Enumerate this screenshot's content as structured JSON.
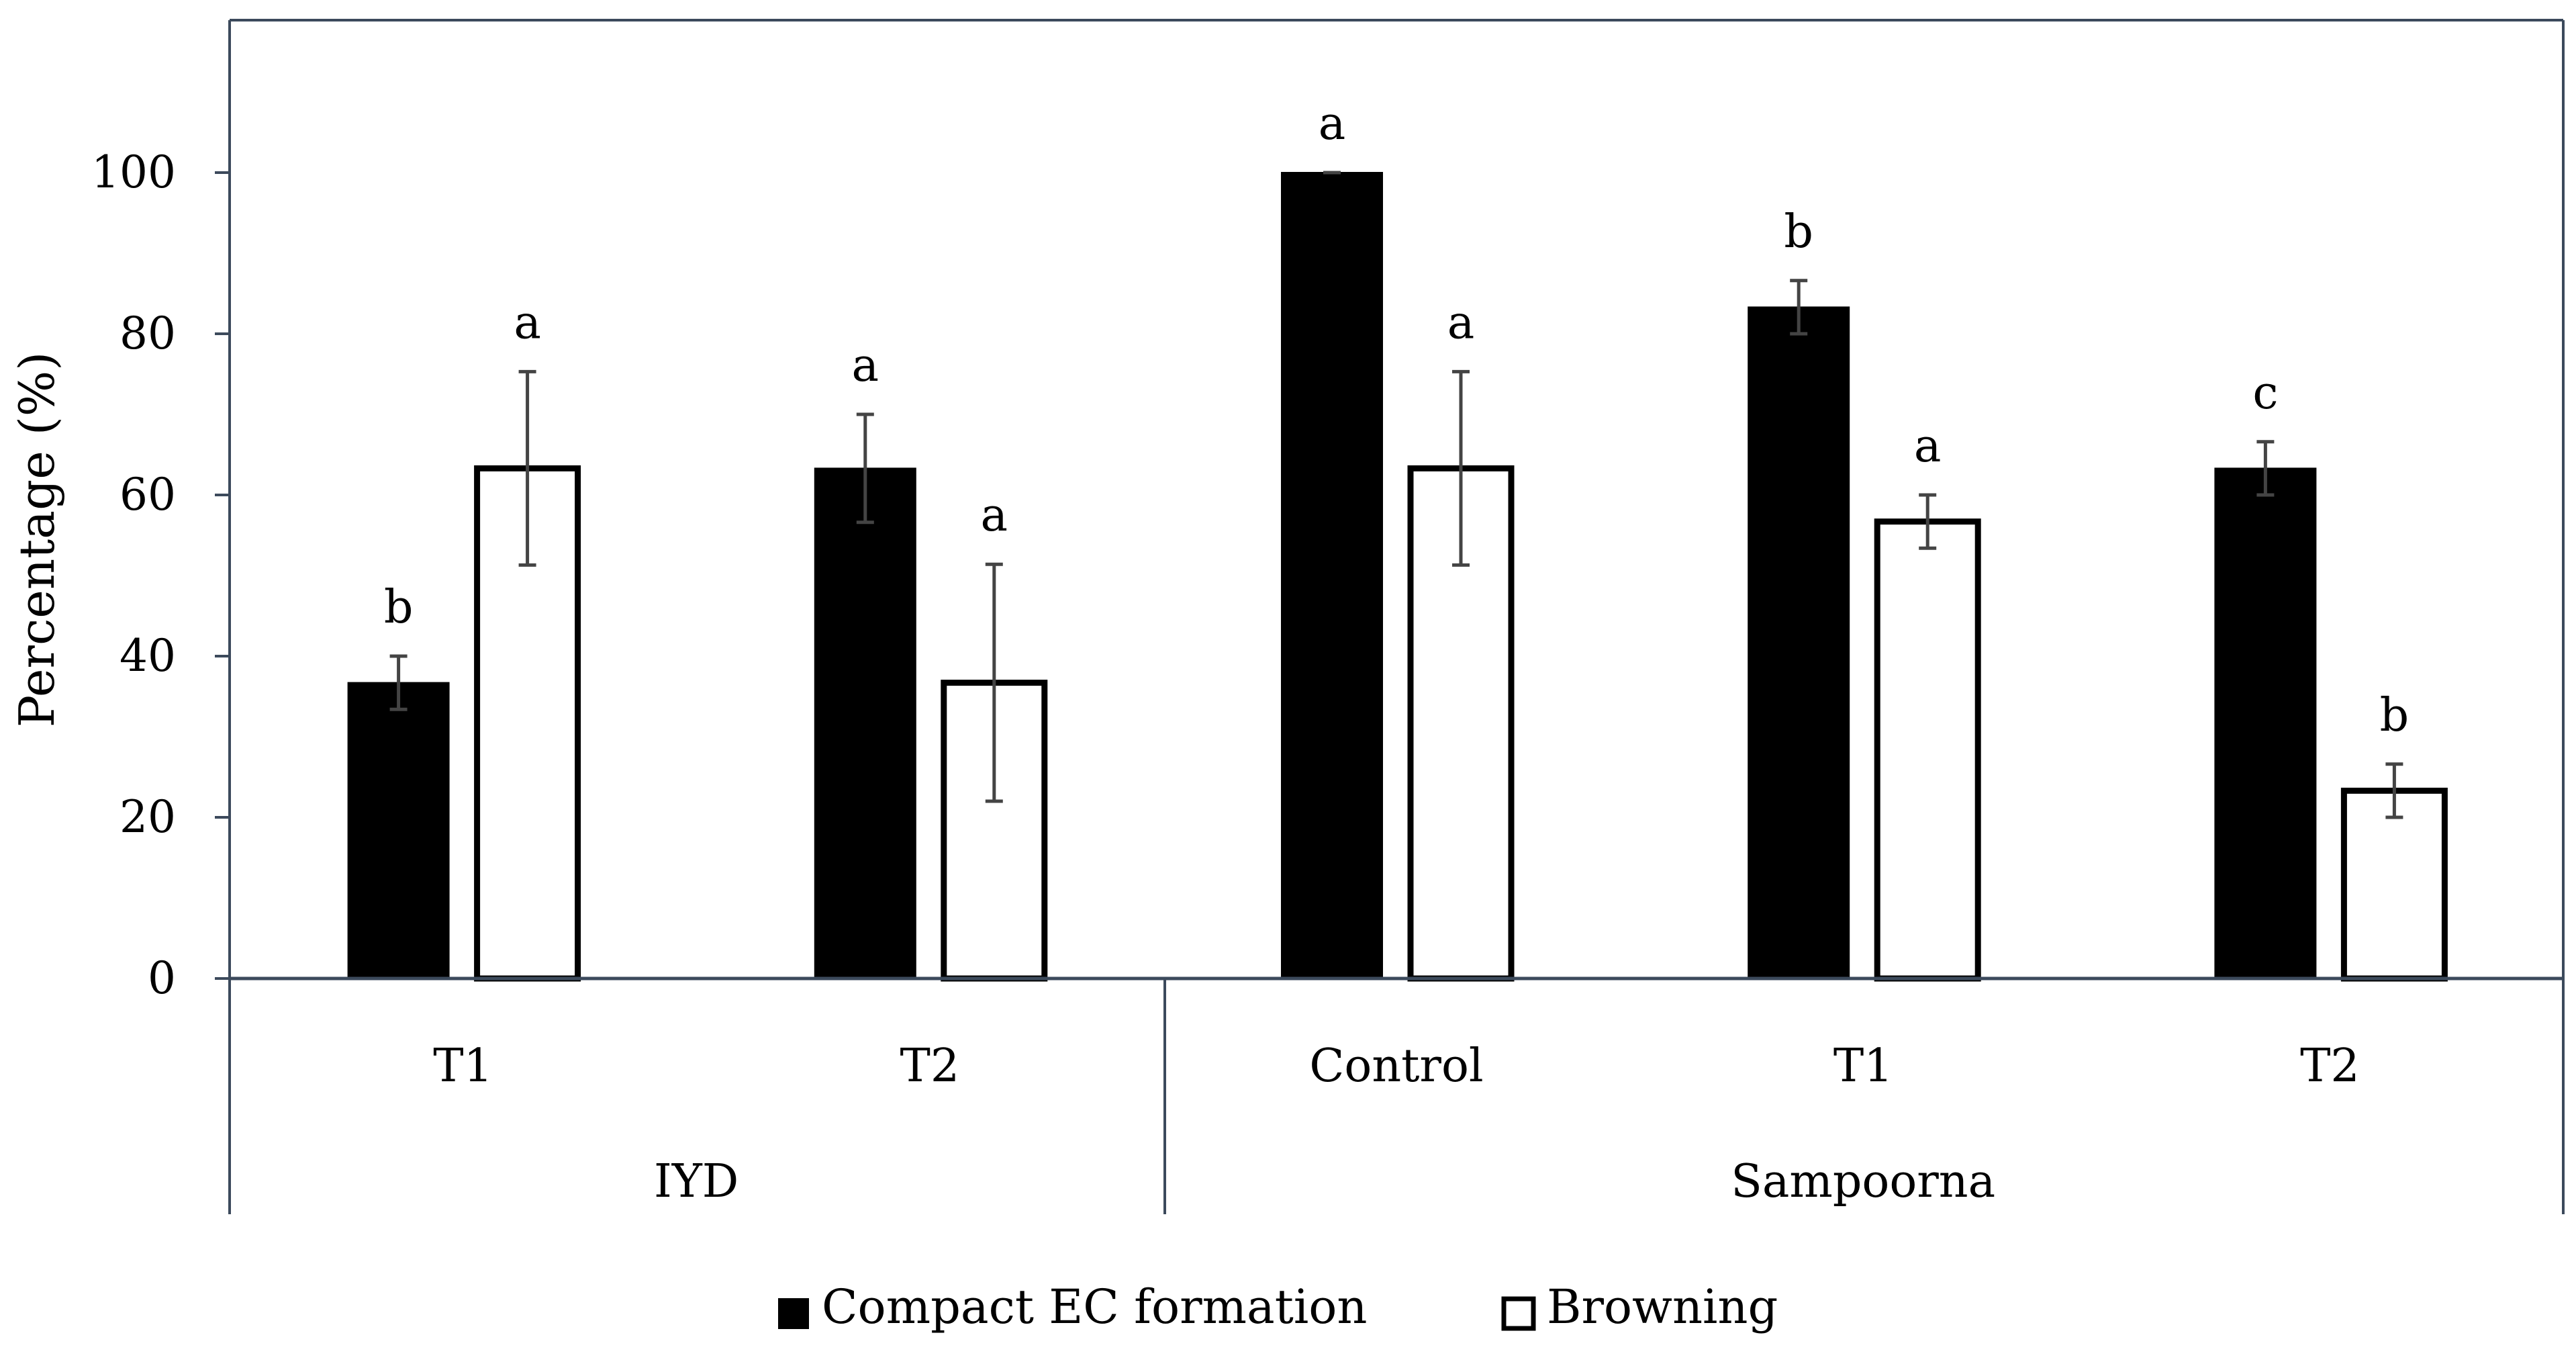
{
  "chart_data": {
    "type": "bar",
    "title": "",
    "xlabel": "",
    "ylabel": "Percentage (%)",
    "ylim": [
      0,
      120
    ],
    "yticks": [
      0,
      20,
      40,
      60,
      80,
      100
    ],
    "grid": false,
    "legend_position": "bottom-center",
    "groups": [
      {
        "label": "IYD",
        "categories": [
          "T1",
          "T2"
        ]
      },
      {
        "label": "Sampoorna",
        "categories": [
          "Control",
          "T1",
          "T2"
        ]
      }
    ],
    "categories": [
      "T1",
      "T2",
      "Control",
      "T1",
      "T2"
    ],
    "series": [
      {
        "name": "Compact EC formation",
        "fill": "#000000",
        "values": [
          36.7,
          63.3,
          100,
          83.3,
          63.3
        ],
        "errors": [
          3.3,
          6.7,
          0,
          3.3,
          3.3
        ],
        "letters": [
          "b",
          "a",
          "a",
          "b",
          "c"
        ]
      },
      {
        "name": "Browning",
        "fill": "#ffffff",
        "values": [
          63.3,
          36.7,
          63.3,
          56.7,
          23.3
        ],
        "errors": [
          12.0,
          14.7,
          12.0,
          3.3,
          3.3
        ],
        "letters": [
          "a",
          "a",
          "a",
          "a",
          "b"
        ]
      }
    ]
  }
}
